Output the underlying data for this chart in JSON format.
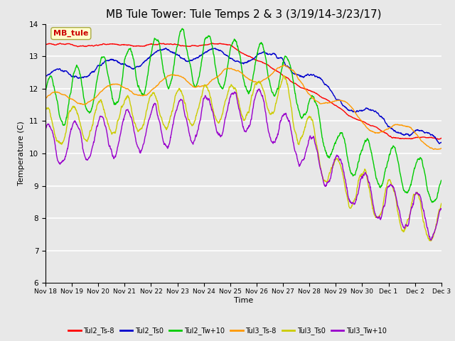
{
  "title": "MB Tule Tower: Tule Temps 2 & 3 (3/19/14-3/23/17)",
  "xlabel": "Time",
  "ylabel": "Temperature (C)",
  "ylim": [
    6.0,
    14.0
  ],
  "yticks": [
    6.0,
    7.0,
    8.0,
    9.0,
    10.0,
    11.0,
    12.0,
    13.0,
    14.0
  ],
  "xtick_labels": [
    "Nov 18",
    "Nov 19",
    "Nov 20",
    "Nov 21",
    "Nov 22",
    "Nov 23",
    "Nov 24",
    "Nov 25",
    "Nov 26",
    "Nov 27",
    "Nov 28",
    "Nov 29",
    "Nov 30",
    "Dec 1",
    "Dec 2",
    "Dec 3"
  ],
  "legend_labels": [
    "Tul2_Ts-8",
    "Tul2_Ts0",
    "Tul2_Tw+10",
    "Tul3_Ts-8",
    "Tul3_Ts0",
    "Tul3_Tw+10"
  ],
  "legend_colors": [
    "#ff0000",
    "#0000cc",
    "#00cc00",
    "#ff9900",
    "#cccc00",
    "#9900cc"
  ],
  "annotation_text": "MB_tule",
  "annotation_color": "#cc0000",
  "annotation_bg": "#ffffcc",
  "plot_bg": "#e8e8e8",
  "fig_bg": "#e8e8e8",
  "title_fontsize": 11,
  "n_points": 1500
}
